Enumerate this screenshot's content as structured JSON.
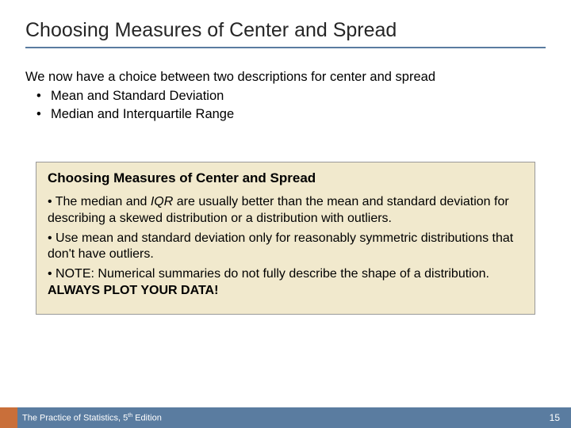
{
  "colors": {
    "background": "#ffffff",
    "title_text": "#262626",
    "title_underline": "#5a7ca0",
    "body_text": "#000000",
    "box_bg": "#f1e9cd",
    "box_border": "#999999",
    "footer_bg": "#5a7ca0",
    "footer_accent": "#c96f3a",
    "footer_text": "#ffffff"
  },
  "typography": {
    "title_fontsize": 25,
    "body_fontsize": 16.5,
    "box_title_fontsize": 17,
    "box_body_fontsize": 16,
    "footer_fontsize": 11
  },
  "title": "Choosing Measures of Center and Spread",
  "intro": {
    "lead": "We now have a choice between two descriptions for center and spread",
    "bullets": [
      "Mean and Standard Deviation",
      "Median and Interquartile Range"
    ]
  },
  "box": {
    "title": "Choosing Measures of Center and Spread",
    "p1_prefix": "• The median and ",
    "p1_iqr": "IQR",
    "p1_suffix": " are usually better than the mean and standard deviation for describing a skewed distribution or a distribution with outliers.",
    "p2": "• Use mean and standard deviation only for reasonably symmetric distributions that don't have outliers.",
    "p3_prefix": "• NOTE: Numerical summaries do not fully describe the shape of a distribution.  ",
    "p3_bold": "ALWAYS  PLOT  YOUR  DATA!"
  },
  "footer": {
    "book_prefix": "The Practice of Statistics, 5",
    "book_sup": "th",
    "book_suffix": " Edition",
    "page": "15"
  }
}
